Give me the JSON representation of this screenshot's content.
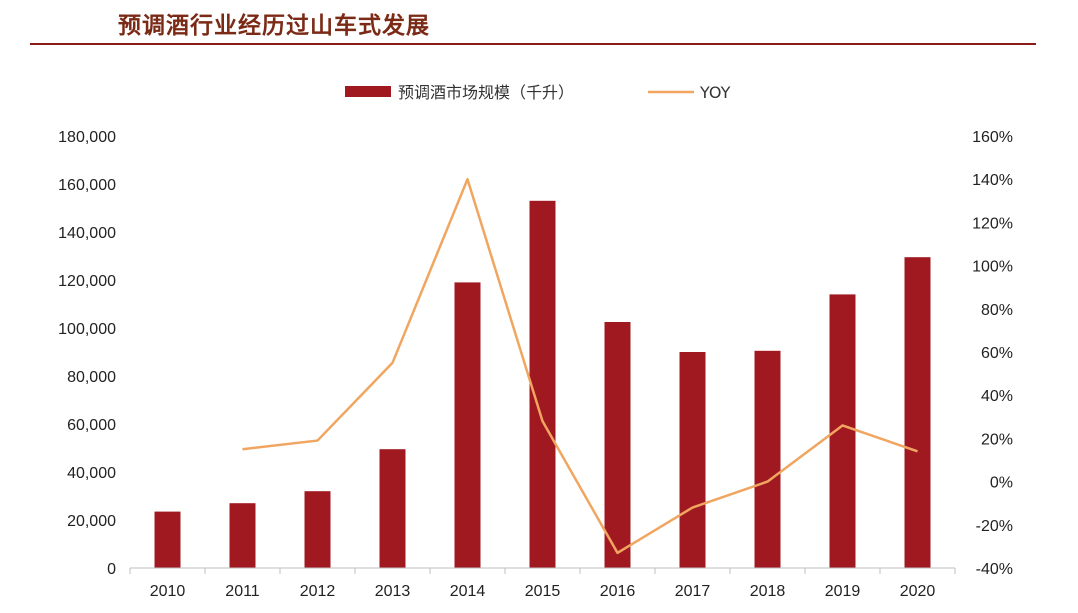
{
  "page": {
    "title": "预调酒行业经历过山车式发展"
  },
  "colors": {
    "title": "#7b2a16",
    "rule": "#8b1a1a",
    "bar": "#a01820",
    "line": "#f0a560"
  },
  "chart_data": {
    "type": "bar",
    "title": "",
    "categories": [
      "2010",
      "2011",
      "2012",
      "2013",
      "2014",
      "2015",
      "2016",
      "2017",
      "2018",
      "2019",
      "2020"
    ],
    "series": [
      {
        "name": "预调酒市场规模（千升）",
        "type": "bar",
        "axis": "left",
        "values": [
          23500,
          27000,
          32000,
          49500,
          119000,
          153000,
          102500,
          90000,
          90500,
          114000,
          129500
        ]
      },
      {
        "name": "YOY",
        "type": "line",
        "axis": "right",
        "values": [
          null,
          0.15,
          0.19,
          0.55,
          1.4,
          0.28,
          -0.33,
          -0.12,
          0.0,
          0.26,
          0.14
        ]
      }
    ],
    "left_axis": {
      "ylim": [
        0,
        180000
      ],
      "ticks": [
        0,
        20000,
        40000,
        60000,
        80000,
        100000,
        120000,
        140000,
        160000,
        180000
      ],
      "tick_labels": [
        "0",
        "20,000",
        "40,000",
        "60,000",
        "80,000",
        "100,000",
        "120,000",
        "140,000",
        "160,000",
        "180,000"
      ]
    },
    "right_axis": {
      "ylim": [
        -0.4,
        1.6
      ],
      "ticks": [
        -0.4,
        -0.2,
        0,
        0.2,
        0.4,
        0.6,
        0.8,
        1.0,
        1.2,
        1.4,
        1.6
      ],
      "tick_labels": [
        "-40%",
        "-20%",
        "0%",
        "20%",
        "40%",
        "60%",
        "80%",
        "100%",
        "120%",
        "140%",
        "160%"
      ]
    },
    "legend": {
      "position": "top-center"
    },
    "grid": false
  }
}
